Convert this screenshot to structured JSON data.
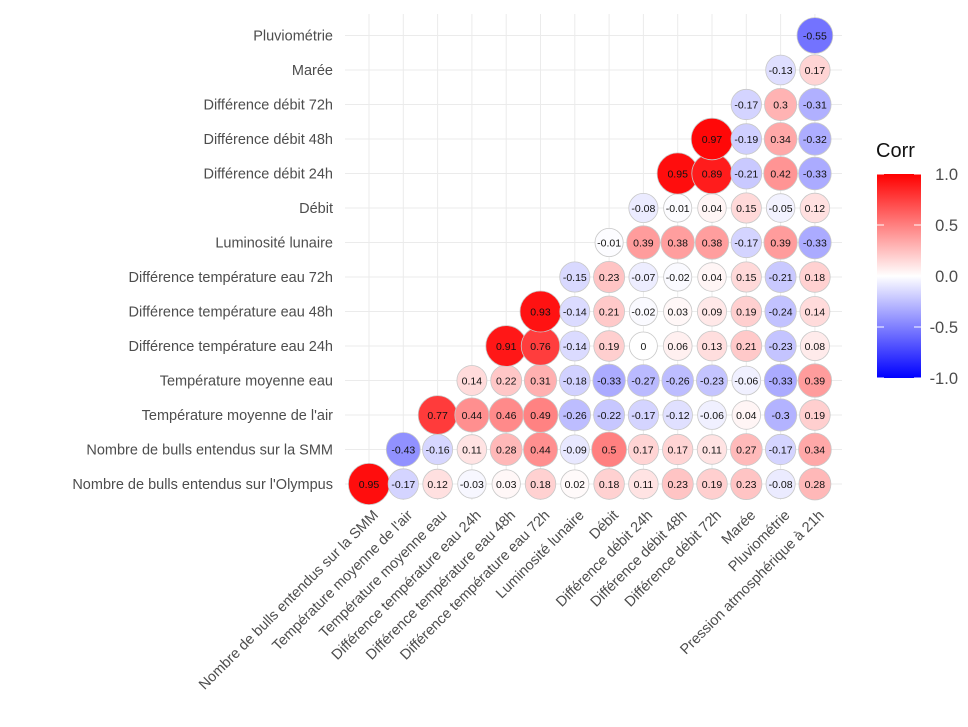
{
  "chart_data": {
    "type": "heatmap",
    "subtype": "correlation-circle-lower-triangle",
    "title": "",
    "xlabel": "",
    "ylabel": "",
    "x_categories": [
      "Nombre de bulls entendus sur la SMM",
      "Température moyenne de l'air",
      "Température moyenne eau",
      "Différence température eau 24h",
      "Différence température eau 48h",
      "Différence température eau 72h",
      "Luminosité lunaire",
      "Débit",
      "Différence débit 24h",
      "Différence débit 48h",
      "Différence débit 72h",
      "Marée",
      "Pluviométrie",
      "Pression atmosphérique à 21h"
    ],
    "y_categories": [
      "Nombre de bulls entendus sur l'Olympus",
      "Nombre de bulls entendus sur la SMM",
      "Température moyenne de l'air",
      "Température moyenne eau",
      "Différence température eau 24h",
      "Différence température eau 48h",
      "Différence température eau 72h",
      "Luminosité lunaire",
      "Débit",
      "Différence débit 24h",
      "Différence débit 48h",
      "Différence débit 72h",
      "Marée",
      "Pluviométrie"
    ],
    "values": [
      [
        0.95,
        -0.17,
        0.12,
        -0.03,
        0.03,
        0.18,
        0.02,
        0.18,
        0.11,
        0.23,
        0.19,
        0.23,
        -0.08,
        0.28
      ],
      [
        null,
        -0.43,
        -0.16,
        0.11,
        0.28,
        0.44,
        -0.09,
        0.5,
        0.17,
        0.17,
        0.11,
        0.27,
        -0.17,
        0.34
      ],
      [
        null,
        null,
        0.77,
        0.44,
        0.46,
        0.49,
        -0.26,
        -0.22,
        -0.17,
        -0.12,
        -0.06,
        0.04,
        -0.3,
        0.19
      ],
      [
        null,
        null,
        null,
        0.14,
        0.22,
        0.31,
        -0.18,
        -0.33,
        -0.27,
        -0.26,
        -0.23,
        -0.06,
        -0.33,
        0.39
      ],
      [
        null,
        null,
        null,
        null,
        0.91,
        0.76,
        -0.14,
        0.19,
        0,
        0.06,
        0.13,
        0.21,
        -0.23,
        0.08
      ],
      [
        null,
        null,
        null,
        null,
        null,
        0.93,
        -0.14,
        0.21,
        -0.02,
        0.03,
        0.09,
        0.19,
        -0.24,
        0.14
      ],
      [
        null,
        null,
        null,
        null,
        null,
        null,
        -0.15,
        0.23,
        -0.07,
        -0.02,
        0.04,
        0.15,
        -0.21,
        0.18
      ],
      [
        null,
        null,
        null,
        null,
        null,
        null,
        null,
        -0.01,
        0.39,
        0.38,
        0.38,
        -0.17,
        0.39,
        -0.33
      ],
      [
        null,
        null,
        null,
        null,
        null,
        null,
        null,
        null,
        -0.08,
        -0.01,
        0.04,
        0.15,
        -0.05,
        0.12
      ],
      [
        null,
        null,
        null,
        null,
        null,
        null,
        null,
        null,
        null,
        0.95,
        0.89,
        -0.21,
        0.42,
        -0.33
      ],
      [
        null,
        null,
        null,
        null,
        null,
        null,
        null,
        null,
        null,
        null,
        0.97,
        -0.19,
        0.34,
        -0.32
      ],
      [
        null,
        null,
        null,
        null,
        null,
        null,
        null,
        null,
        null,
        null,
        null,
        -0.17,
        0.3,
        -0.31
      ],
      [
        null,
        null,
        null,
        null,
        null,
        null,
        null,
        null,
        null,
        null,
        null,
        null,
        -0.13,
        0.17
      ],
      [
        null,
        null,
        null,
        null,
        null,
        null,
        null,
        null,
        null,
        null,
        null,
        null,
        null,
        -0.55
      ]
    ],
    "value_range": [
      -1,
      1
    ],
    "grid": true,
    "legend": {
      "title": "Corr",
      "position": "right",
      "ticks": [
        "1.0",
        "0.5",
        "0.0",
        "-0.5",
        "-1.0"
      ],
      "tick_values": [
        1,
        0.5,
        0,
        -0.5,
        -1
      ],
      "colors": {
        "low": "#0000FF",
        "mid": "#FFFFFF",
        "high": "#FF0000"
      }
    }
  }
}
